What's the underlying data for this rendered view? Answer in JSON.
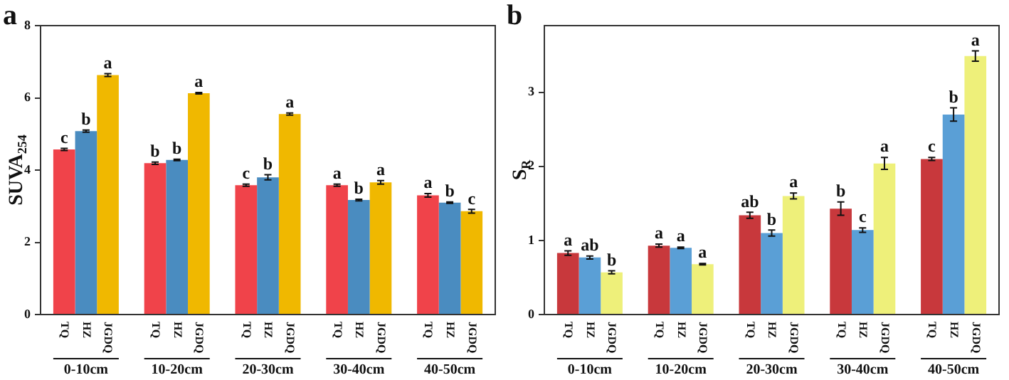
{
  "chart_data": [
    {
      "type": "bar",
      "title": "a",
      "ylabel": "SUVA$_{254}$",
      "categories": [
        "0-10cm",
        "10-20cm",
        "20-30cm",
        "30-40cm",
        "40-50cm"
      ],
      "ylim": [
        0,
        8
      ],
      "yticks": [
        0,
        2,
        4,
        6,
        8
      ],
      "grid": false,
      "series": [
        {
          "name": "TQ",
          "color": "#f0434a",
          "values": [
            4.57,
            4.19,
            3.58,
            3.58,
            3.3
          ],
          "errors": [
            0.03,
            0.03,
            0.03,
            0.03,
            0.05
          ],
          "value_labels": [
            "c",
            "b",
            "c",
            "a",
            "a"
          ]
        },
        {
          "name": "HZ",
          "color": "#4a8cc0",
          "values": [
            5.08,
            4.28,
            3.8,
            3.17,
            3.1
          ],
          "errors": [
            0.03,
            0.02,
            0.07,
            0.02,
            0.02
          ],
          "value_labels": [
            "b",
            "b",
            "b",
            "b",
            "b"
          ]
        },
        {
          "name": "JGDQ",
          "color": "#f0b800",
          "values": [
            6.63,
            6.13,
            5.55,
            3.66,
            2.86
          ],
          "errors": [
            0.04,
            0.02,
            0.03,
            0.05,
            0.05
          ],
          "value_labels": [
            "a",
            "a",
            "a",
            "a",
            "c"
          ]
        }
      ]
    },
    {
      "type": "bar",
      "title": "b",
      "ylabel": "S$_{R}$",
      "categories": [
        "0-10cm",
        "10-20cm",
        "20-30cm",
        "30-40cm",
        "40-50cm"
      ],
      "ylim": [
        0,
        3.9
      ],
      "yticks": [
        0,
        1,
        2,
        3
      ],
      "grid": false,
      "series": [
        {
          "name": "TQ",
          "color": "#c8383c",
          "values": [
            0.83,
            0.93,
            1.34,
            1.43,
            2.1
          ],
          "errors": [
            0.03,
            0.02,
            0.04,
            0.09,
            0.02
          ],
          "value_labels": [
            "a",
            "a",
            "ab",
            "b",
            "c"
          ]
        },
        {
          "name": "HZ",
          "color": "#5a9fd6",
          "values": [
            0.77,
            0.9,
            1.1,
            1.14,
            2.7
          ],
          "errors": [
            0.02,
            0.01,
            0.04,
            0.03,
            0.09
          ],
          "value_labels": [
            "ab",
            "a",
            "b",
            "c",
            "b"
          ]
        },
        {
          "name": "JGDQ",
          "color": "#eef07a",
          "values": [
            0.57,
            0.68,
            1.6,
            2.04,
            3.49
          ],
          "errors": [
            0.02,
            0.01,
            0.04,
            0.08,
            0.07
          ],
          "value_labels": [
            "b",
            "a",
            "a",
            "a",
            "a"
          ]
        }
      ]
    }
  ]
}
